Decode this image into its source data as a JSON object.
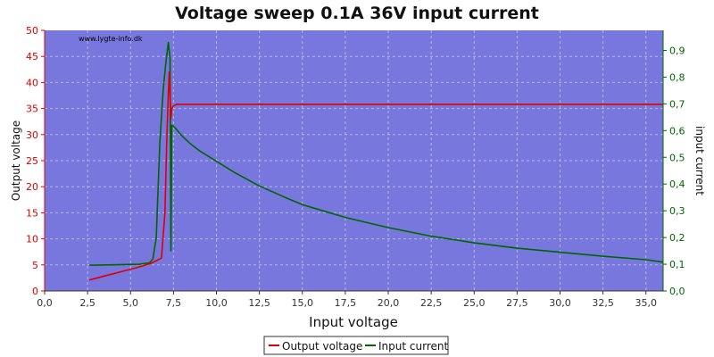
{
  "chart_data": {
    "type": "line",
    "title": "Voltage sweep 0.1A 36V input current",
    "watermark": "www.lygte-info.dk",
    "xlabel": "Input voltage",
    "ylabel_left": "Output voltage",
    "ylabel_right": "input current",
    "xlim": [
      0,
      36
    ],
    "ylim_left": [
      0,
      50
    ],
    "ylim_right": [
      0,
      0.975
    ],
    "grid": true,
    "legend_position": "bottom-center",
    "plot_background": "#7777dd",
    "x_ticks": [
      "0,0",
      "2,5",
      "5,0",
      "7,5",
      "10,0",
      "12,5",
      "15,0",
      "17,5",
      "20,0",
      "22,5",
      "25,0",
      "27,5",
      "30,0",
      "32,5",
      "35,0"
    ],
    "y_left_ticks": [
      "0",
      "5",
      "10",
      "15",
      "20",
      "25",
      "30",
      "35",
      "40",
      "45",
      "50"
    ],
    "y_right_ticks": [
      "0,0",
      "0,1",
      "0,2",
      "0,3",
      "0,4",
      "0,5",
      "0,6",
      "0,7",
      "0,8",
      "0,9"
    ],
    "series": [
      {
        "name": "Output voltage",
        "axis": "left",
        "color": "#dd0000",
        "points": [
          [
            2.6,
            2.1
          ],
          [
            4.0,
            3.3
          ],
          [
            5.5,
            4.6
          ],
          [
            6.2,
            5.3
          ],
          [
            6.8,
            6.3
          ],
          [
            7.0,
            15
          ],
          [
            7.1,
            28
          ],
          [
            7.2,
            38
          ],
          [
            7.25,
            42
          ],
          [
            7.3,
            38
          ],
          [
            7.35,
            33
          ],
          [
            7.4,
            35
          ],
          [
            7.5,
            35.5
          ],
          [
            7.7,
            35.8
          ],
          [
            10,
            35.8
          ],
          [
            20,
            35.8
          ],
          [
            30,
            35.8
          ],
          [
            36,
            35.8
          ]
        ]
      },
      {
        "name": "Input current",
        "axis": "right",
        "color": "#006600",
        "points": [
          [
            2.6,
            0.096
          ],
          [
            4.0,
            0.098
          ],
          [
            5.5,
            0.1
          ],
          [
            6.1,
            0.105
          ],
          [
            6.3,
            0.12
          ],
          [
            6.5,
            0.2
          ],
          [
            6.7,
            0.55
          ],
          [
            6.9,
            0.75
          ],
          [
            7.05,
            0.85
          ],
          [
            7.2,
            0.93
          ],
          [
            7.3,
            0.87
          ],
          [
            7.35,
            0.15
          ],
          [
            7.4,
            0.62
          ],
          [
            7.6,
            0.61
          ],
          [
            8.0,
            0.58
          ],
          [
            8.5,
            0.55
          ],
          [
            9.0,
            0.525
          ],
          [
            10.0,
            0.485
          ],
          [
            11.0,
            0.445
          ],
          [
            12.0,
            0.41
          ],
          [
            12.5,
            0.393
          ],
          [
            14.0,
            0.35
          ],
          [
            15.0,
            0.323
          ],
          [
            17.5,
            0.275
          ],
          [
            20.0,
            0.237
          ],
          [
            22.5,
            0.205
          ],
          [
            25.0,
            0.18
          ],
          [
            27.5,
            0.16
          ],
          [
            30.0,
            0.145
          ],
          [
            32.5,
            0.13
          ],
          [
            35.0,
            0.117
          ],
          [
            36.0,
            0.108
          ]
        ]
      }
    ]
  },
  "colors": {
    "left_axis": "#dd0000",
    "right_axis": "#006600",
    "bottom_axis": "#333333",
    "grid": "#b8b8e8"
  }
}
